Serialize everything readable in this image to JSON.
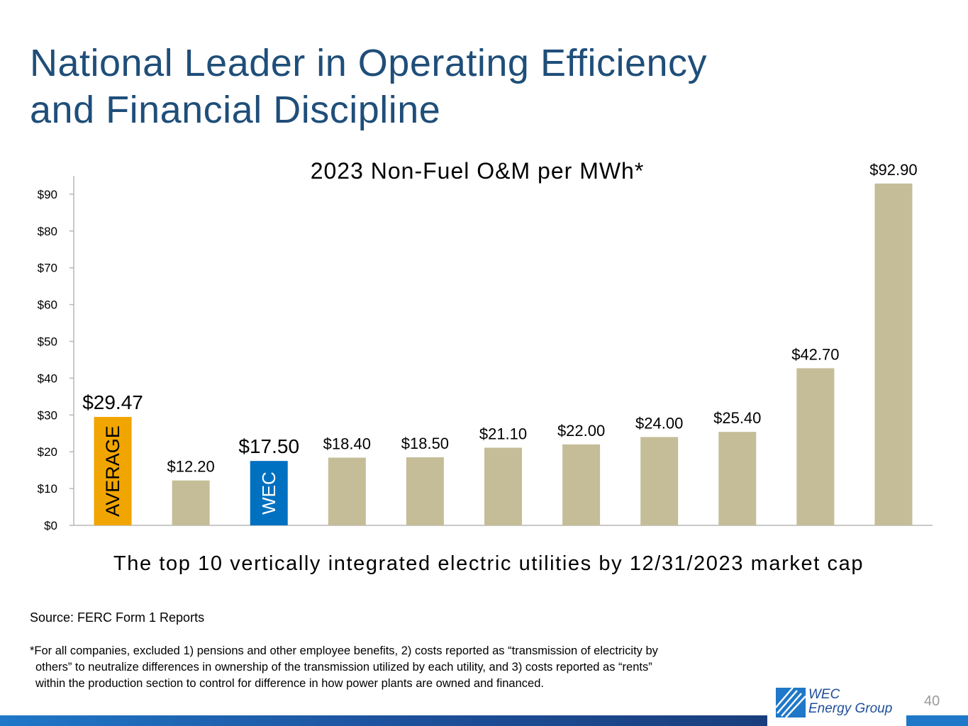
{
  "slide": {
    "title_line1": "National Leader in Operating Efficiency",
    "title_line2": "and Financial Discipline",
    "source": "Source: FERC Form 1 Reports",
    "footnote_line1": "*For all companies, excluded 1) pensions and other employee benefits, 2) costs reported as “transmission of electricity by",
    "footnote_line2": "others” to neutralize differences in ownership of the transmission utilized by each utility, and 3) costs reported as “rents”",
    "footnote_line3": "within the production section to control for difference in how power plants are owned and financed.",
    "page_number": "40",
    "logo_line1": "WEC",
    "logo_line2": "Energy Group"
  },
  "colors": {
    "title": "#1f4e79",
    "average_bar": "#f0a500",
    "wec_bar": "#0070c0",
    "peer_bar": "#c4bd97",
    "bottom_bar": "#1f78c8"
  },
  "chart_data": {
    "type": "bar",
    "title": "2023 Non-Fuel O&M per MWh*",
    "xlabel": "The top 10 vertically integrated electric utilities by 12/31/2023 market cap",
    "ylabel": "",
    "ylim": [
      0,
      95
    ],
    "yticks": [
      "$0",
      "$10",
      "$20",
      "$30",
      "$40",
      "$50",
      "$60",
      "$70",
      "$80",
      "$90"
    ],
    "ytick_values": [
      0,
      10,
      20,
      30,
      40,
      50,
      60,
      70,
      80,
      90
    ],
    "grid": false,
    "bars": [
      {
        "value": 29.47,
        "label": "$29.47",
        "bar_text": "AVERAGE",
        "kind": "average"
      },
      {
        "value": 12.2,
        "label": "$12.20",
        "bar_text": "",
        "kind": "peer"
      },
      {
        "value": 17.5,
        "label": "$17.50",
        "bar_text": "WEC",
        "kind": "wec"
      },
      {
        "value": 18.4,
        "label": "$18.40",
        "bar_text": "",
        "kind": "peer"
      },
      {
        "value": 18.5,
        "label": "$18.50",
        "bar_text": "",
        "kind": "peer"
      },
      {
        "value": 21.1,
        "label": "$21.10",
        "bar_text": "",
        "kind": "peer"
      },
      {
        "value": 22.0,
        "label": "$22.00",
        "bar_text": "",
        "kind": "peer"
      },
      {
        "value": 24.0,
        "label": "$24.00",
        "bar_text": "",
        "kind": "peer"
      },
      {
        "value": 25.4,
        "label": "$25.40",
        "bar_text": "",
        "kind": "peer"
      },
      {
        "value": 42.7,
        "label": "$42.70",
        "bar_text": "",
        "kind": "peer"
      },
      {
        "value": 92.9,
        "label": "$92.90",
        "bar_text": "",
        "kind": "peer"
      }
    ]
  }
}
